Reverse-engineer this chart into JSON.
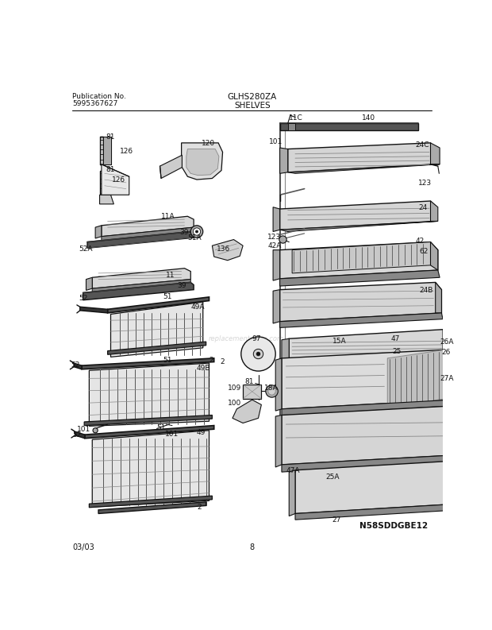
{
  "title": "GLHS280ZA",
  "subtitle": "SHELVES",
  "pub_no_label": "Publication No.",
  "pub_no": "5995367627",
  "page_date": "03/03",
  "page_num": "8",
  "diagram_id": "N58SDDGBE12",
  "bg_color": "#ffffff",
  "lc": "#111111",
  "tc": "#111111",
  "gray1": "#cccccc",
  "gray2": "#aaaaaa",
  "gray3": "#888888",
  "gray4": "#555555",
  "gray5": "#333333"
}
